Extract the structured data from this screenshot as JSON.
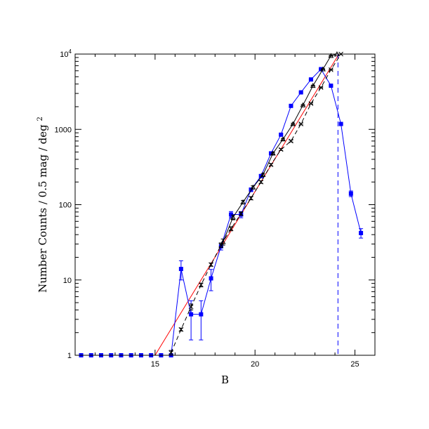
{
  "chart_data": {
    "type": "line",
    "title": "",
    "xlabel": "B",
    "ylabel": "Number Counts / 0.5 mag / deg",
    "ylabel_superscript": "2",
    "xlim": [
      11,
      26
    ],
    "ylim": [
      1,
      10000
    ],
    "yscale": "log",
    "grid": false,
    "x_ticks": [
      15,
      20,
      25
    ],
    "y_ticks": [
      {
        "value": 1,
        "label": "1"
      },
      {
        "value": 10,
        "label": "10"
      },
      {
        "value": 100,
        "label": "100"
      },
      {
        "value": 1000,
        "label": "1000"
      },
      {
        "value": 10000,
        "label": "10",
        "sup": "4"
      }
    ],
    "series": [
      {
        "style": "solid-blue-squares",
        "color": "#0000ff",
        "points": [
          {
            "x": 11.3,
            "y": 1
          },
          {
            "x": 11.8,
            "y": 1
          },
          {
            "x": 12.3,
            "y": 1
          },
          {
            "x": 12.8,
            "y": 1
          },
          {
            "x": 13.3,
            "y": 1
          },
          {
            "x": 13.8,
            "y": 1
          },
          {
            "x": 14.3,
            "y": 1
          },
          {
            "x": 14.8,
            "y": 1
          },
          {
            "x": 15.3,
            "y": 1
          },
          {
            "x": 15.8,
            "y": 1
          },
          {
            "x": 16.3,
            "y": 14,
            "err_lo": 10,
            "err_hi": 18
          },
          {
            "x": 16.8,
            "y": 3.5,
            "err_lo": 1.6,
            "err_hi": 5.3
          },
          {
            "x": 17.3,
            "y": 3.5,
            "err_lo": 1.6,
            "err_hi": 5.3
          },
          {
            "x": 17.8,
            "y": 10.5,
            "err_lo": 7.2,
            "err_hi": 13.8
          },
          {
            "x": 18.3,
            "y": 28,
            "err_lo": 25,
            "err_hi": 31
          },
          {
            "x": 18.8,
            "y": 74,
            "err_lo": 67,
            "err_hi": 81
          },
          {
            "x": 19.3,
            "y": 74,
            "err_lo": 67,
            "err_hi": 81
          },
          {
            "x": 19.8,
            "y": 158,
            "err_lo": 149,
            "err_hi": 167
          },
          {
            "x": 20.3,
            "y": 240,
            "err_lo": 230,
            "err_hi": 250
          },
          {
            "x": 20.8,
            "y": 480,
            "err_lo": 466,
            "err_hi": 494
          },
          {
            "x": 21.3,
            "y": 850,
            "err_lo": 830,
            "err_hi": 870
          },
          {
            "x": 21.8,
            "y": 2050,
            "err_lo": 2010,
            "err_hi": 2090
          },
          {
            "x": 22.3,
            "y": 3100,
            "err_lo": 3050,
            "err_hi": 3150
          },
          {
            "x": 22.8,
            "y": 4600,
            "err_lo": 4530,
            "err_hi": 4670
          },
          {
            "x": 23.3,
            "y": 6300,
            "err_lo": 6220,
            "err_hi": 6380
          },
          {
            "x": 23.8,
            "y": 3800,
            "err_lo": 3740,
            "err_hi": 3860
          },
          {
            "x": 24.3,
            "y": 1180,
            "err_lo": 1150,
            "err_hi": 1210
          },
          {
            "x": 24.8,
            "y": 140,
            "err_lo": 128,
            "err_hi": 152
          },
          {
            "x": 25.3,
            "y": 42,
            "err_lo": 36,
            "err_hi": 48
          }
        ]
      },
      {
        "style": "dashed-black-crosses",
        "color": "#000000",
        "points": [
          {
            "x": 15.8,
            "y": 1.08,
            "err_lo": 1.0,
            "err_hi": 1.16
          },
          {
            "x": 16.3,
            "y": 2.2,
            "err_lo": 2.1,
            "err_hi": 2.3
          },
          {
            "x": 16.8,
            "y": 4.4,
            "err_lo": 4.0,
            "err_hi": 4.8
          },
          {
            "x": 17.3,
            "y": 8.6,
            "err_lo": 8.1,
            "err_hi": 9.1
          },
          {
            "x": 17.8,
            "y": 16,
            "err_lo": 15.2,
            "err_hi": 16.8
          },
          {
            "x": 18.3,
            "y": 29,
            "err_lo": 27,
            "err_hi": 31
          },
          {
            "x": 18.8,
            "y": 48,
            "err_lo": 45,
            "err_hi": 51
          },
          {
            "x": 19.3,
            "y": 76,
            "err_lo": 72,
            "err_hi": 80
          },
          {
            "x": 19.8,
            "y": 122,
            "err_lo": 116,
            "err_hi": 128
          },
          {
            "x": 20.3,
            "y": 200,
            "err_lo": 192,
            "err_hi": 208
          },
          {
            "x": 20.8,
            "y": 340,
            "err_lo": 328,
            "err_hi": 352
          },
          {
            "x": 21.3,
            "y": 540,
            "err_lo": 524,
            "err_hi": 556
          },
          {
            "x": 21.8,
            "y": 700,
            "err_lo": 680,
            "err_hi": 720
          },
          {
            "x": 22.3,
            "y": 1180,
            "err_lo": 1150,
            "err_hi": 1210
          },
          {
            "x": 22.8,
            "y": 2200,
            "err_lo": 2160,
            "err_hi": 2240
          },
          {
            "x": 23.3,
            "y": 3600,
            "err_lo": 3550,
            "err_hi": 3650
          },
          {
            "x": 23.8,
            "y": 6200,
            "err_lo": 6100,
            "err_hi": 6300
          },
          {
            "x": 24.3,
            "y": 10000
          }
        ]
      },
      {
        "style": "solid-black-triangles",
        "color": "#000000",
        "points": [
          {
            "x": 18.4,
            "y": 32,
            "err_lo": 29,
            "err_hi": 35
          },
          {
            "x": 18.9,
            "y": 68,
            "err_lo": 63,
            "err_hi": 73
          },
          {
            "x": 19.4,
            "y": 108,
            "err_lo": 102,
            "err_hi": 114
          },
          {
            "x": 19.9,
            "y": 170,
            "err_lo": 162,
            "err_hi": 178
          },
          {
            "x": 20.4,
            "y": 250,
            "err_lo": 240,
            "err_hi": 260
          },
          {
            "x": 20.9,
            "y": 480,
            "err_lo": 466,
            "err_hi": 494
          },
          {
            "x": 21.4,
            "y": 740,
            "err_lo": 720,
            "err_hi": 760
          },
          {
            "x": 21.9,
            "y": 1180,
            "err_lo": 1150,
            "err_hi": 1210
          },
          {
            "x": 22.4,
            "y": 2100,
            "err_lo": 2060,
            "err_hi": 2140
          },
          {
            "x": 22.9,
            "y": 3800,
            "err_lo": 3740,
            "err_hi": 3860
          },
          {
            "x": 23.4,
            "y": 6300,
            "err_lo": 6220,
            "err_hi": 6380
          },
          {
            "x": 23.8,
            "y": 9500,
            "err_lo": 9380,
            "err_hi": 9620
          },
          {
            "x": 24.1,
            "y": 10000
          }
        ]
      }
    ],
    "fit_line": {
      "color": "#ff0000",
      "x": [
        15.0,
        24.2
      ],
      "y": [
        1,
        10000
      ]
    },
    "limit_line": {
      "color": "#0000ff",
      "x": 24.15
    }
  }
}
